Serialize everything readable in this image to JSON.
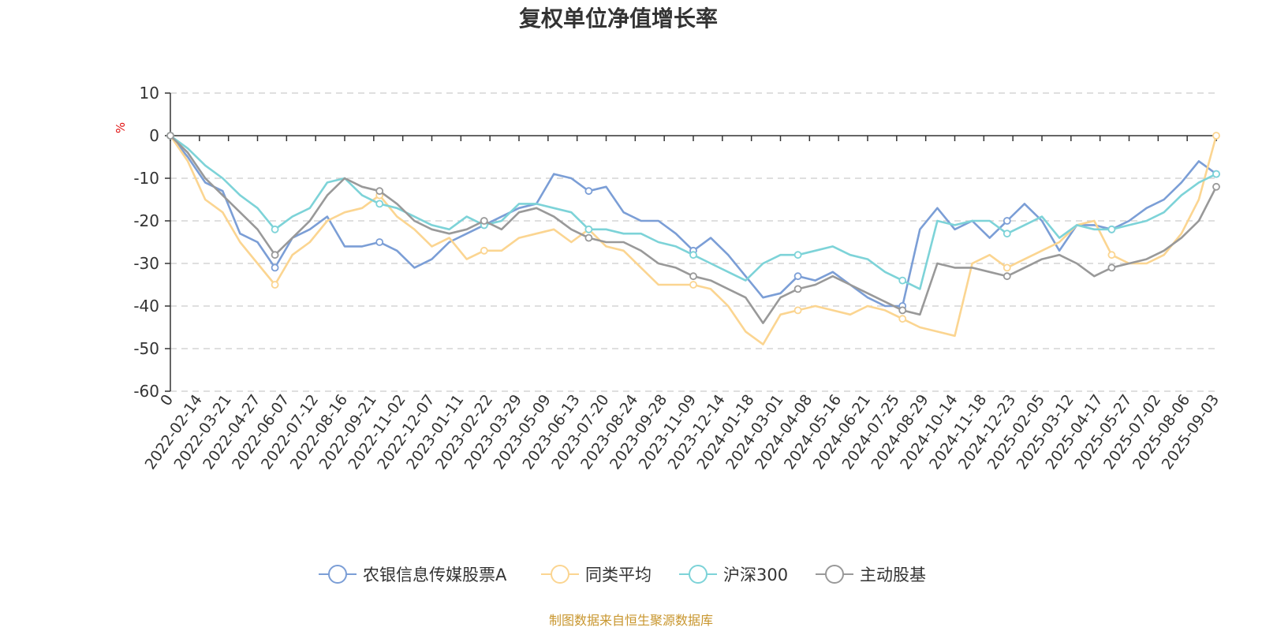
{
  "chart_data": {
    "type": "line",
    "title": "复权单位净值增长率",
    "y_unit": "%",
    "ylim": [
      -60,
      10
    ],
    "yticks": [
      10,
      0,
      -10,
      -20,
      -30,
      -40,
      -50,
      -60
    ],
    "grid": true,
    "x_start_label": "0",
    "x_labels": [
      "2022-02-14",
      "2022-03-21",
      "2022-04-27",
      "2022-06-07",
      "2022-07-12",
      "2022-08-16",
      "2022-09-21",
      "2022-11-02",
      "2022-12-07",
      "2023-01-11",
      "2023-02-22",
      "2023-03-29",
      "2023-05-09",
      "2023-06-13",
      "2023-07-20",
      "2023-08-24",
      "2023-09-28",
      "2023-11-09",
      "2023-12-14",
      "2024-01-18",
      "2024-03-01",
      "2024-04-08",
      "2024-05-16",
      "2024-06-21",
      "2024-07-25",
      "2024-08-29",
      "2024-10-14",
      "2024-11-18",
      "2024-12-23",
      "2025-02-05",
      "2025-03-12",
      "2025-04-17",
      "2025-05-27",
      "2025-07-02",
      "2025-08-06",
      "2025-09-03"
    ],
    "legend_position": "bottom",
    "series": [
      {
        "name": "农银信息传媒股票A",
        "color": "#7b9ed6",
        "values": [
          0,
          -5,
          -11,
          -13,
          -23,
          -25,
          -31,
          -24,
          -22,
          -19,
          -26,
          -26,
          -25,
          -27,
          -31,
          -29,
          -25,
          -23,
          -21,
          -19,
          -17,
          -16,
          -9,
          -10,
          -13,
          -12,
          -18,
          -20,
          -20,
          -23,
          -27,
          -24,
          -28,
          -33,
          -38,
          -37,
          -33,
          -34,
          -32,
          -35,
          -38,
          -40,
          -40,
          -22,
          -17,
          -22,
          -20,
          -24,
          -20,
          -16,
          -20,
          -27,
          -21,
          -21,
          -22,
          -20,
          -17,
          -15,
          -11,
          -6,
          -9
        ]
      },
      {
        "name": "同类平均",
        "color": "#fbd591",
        "values": [
          0,
          -6,
          -15,
          -18,
          -25,
          -30,
          -35,
          -28,
          -25,
          -20,
          -18,
          -17,
          -14,
          -19,
          -22,
          -26,
          -24,
          -29,
          -27,
          -27,
          -24,
          -23,
          -22,
          -25,
          -22,
          -26,
          -27,
          -31,
          -35,
          -35,
          -35,
          -36,
          -40,
          -46,
          -49,
          -42,
          -41,
          -40,
          -41,
          -42,
          -40,
          -41,
          -43,
          -45,
          -46,
          -47,
          -30,
          -28,
          -31,
          -29,
          -27,
          -25,
          -21,
          -20,
          -28,
          -30,
          -30,
          -28,
          -23,
          -15,
          0
        ]
      },
      {
        "name": "沪深300",
        "color": "#7dd3d8",
        "values": [
          0,
          -3,
          -7,
          -10,
          -14,
          -17,
          -22,
          -19,
          -17,
          -11,
          -10,
          -14,
          -16,
          -17,
          -19,
          -21,
          -22,
          -19,
          -21,
          -20,
          -16,
          -16,
          -17,
          -18,
          -22,
          -22,
          -23,
          -23,
          -25,
          -26,
          -28,
          -30,
          -32,
          -34,
          -30,
          -28,
          -28,
          -27,
          -26,
          -28,
          -29,
          -32,
          -34,
          -36,
          -20,
          -21,
          -20,
          -20,
          -23,
          -21,
          -19,
          -24,
          -21,
          -22,
          -22,
          -21,
          -20,
          -18,
          -14,
          -11,
          -9
        ]
      },
      {
        "name": "主动股基",
        "color": "#999999",
        "values": [
          0,
          -4,
          -10,
          -14,
          -18,
          -22,
          -28,
          -24,
          -20,
          -14,
          -10,
          -12,
          -13,
          -16,
          -20,
          -22,
          -23,
          -22,
          -20,
          -22,
          -18,
          -17,
          -19,
          -22,
          -24,
          -25,
          -25,
          -27,
          -30,
          -31,
          -33,
          -34,
          -36,
          -38,
          -44,
          -38,
          -36,
          -35,
          -33,
          -35,
          -37,
          -39,
          -41,
          -42,
          -30,
          -31,
          -31,
          -32,
          -33,
          -31,
          -29,
          -28,
          -30,
          -33,
          -31,
          -30,
          -29,
          -27,
          -24,
          -20,
          -12
        ]
      }
    ]
  },
  "source_text": "制图数据来自恒生聚源数据库",
  "source_color": "#c8962e"
}
